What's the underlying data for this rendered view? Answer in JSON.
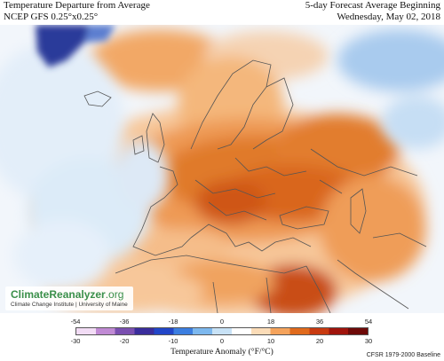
{
  "header": {
    "left_line1": "Temperature Departure from Average",
    "left_line2": "NCEP GFS 0.25°x0.25°",
    "right_line1": "5-day Forecast Average Beginning",
    "right_line2": "Wednesday, May 02, 2018"
  },
  "logo": {
    "brand": "ClimateReanalyzer",
    "brand_suffix": ".org",
    "institution": "Climate Change Institute | University of Maine"
  },
  "colorbar": {
    "title": "Temperature Anomaly (°F/°C)",
    "fahrenheit_ticks": [
      "-54",
      "-36",
      "-18",
      "0",
      "18",
      "36",
      "54"
    ],
    "celsius_ticks": [
      "-30",
      "-20",
      "-10",
      "0",
      "10",
      "20",
      "30"
    ],
    "colors": [
      "#f2dcf5",
      "#c08ad4",
      "#7a4fb0",
      "#3a2d9c",
      "#2246c8",
      "#3c7ee0",
      "#7db8ee",
      "#c8e2f6",
      "#ffffff",
      "#fbdcb8",
      "#f5a35c",
      "#e06a1c",
      "#c83a10",
      "#a0140c",
      "#6e0a08"
    ]
  },
  "baseline": "CFSR 1979-2000 Baseline",
  "map_colors": {
    "sea": "#f2f6fb",
    "greenland_ice": "#2a3a9a",
    "cold_blue": "#a9cbee",
    "light_blue": "#dcebf8",
    "warm_light": "#f7c79a",
    "warm_mid": "#ee9a55",
    "warm_hot": "#d9661f",
    "warm_deep": "#b94510",
    "borders": "#555555"
  }
}
